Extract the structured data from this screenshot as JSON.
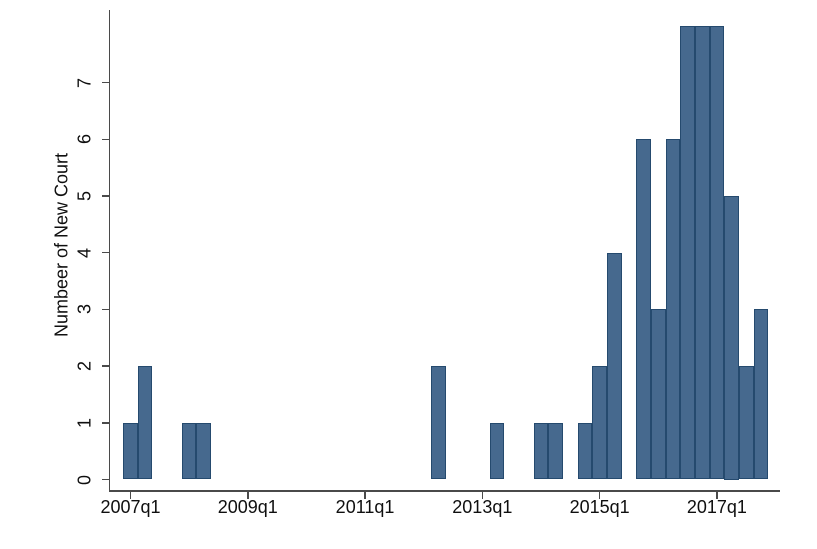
{
  "chart_data": {
    "type": "bar",
    "subtype": "histogram",
    "title": "",
    "xlabel": "",
    "ylabel": "Numbeer of New Court",
    "x": [
      "2007q1",
      "2007q2",
      "2007q3",
      "2007q4",
      "2008q1",
      "2008q2",
      "2008q3",
      "2008q4",
      "2009q1",
      "2009q2",
      "2009q3",
      "2009q4",
      "2010q1",
      "2010q2",
      "2010q3",
      "2010q4",
      "2011q1",
      "2011q2",
      "2011q3",
      "2011q4",
      "2012q1",
      "2012q2",
      "2012q3",
      "2012q4",
      "2013q1",
      "2013q2",
      "2013q3",
      "2013q4",
      "2014q1",
      "2014q2",
      "2014q3",
      "2014q4",
      "2015q1",
      "2015q2",
      "2015q3",
      "2015q4",
      "2016q1",
      "2016q2",
      "2016q3",
      "2016q4",
      "2017q1",
      "2017q2",
      "2017q3",
      "2017q4"
    ],
    "values": [
      1,
      2,
      0,
      0,
      1,
      1,
      0,
      0,
      0,
      0,
      0,
      0,
      0,
      0,
      0,
      0,
      0,
      0,
      0,
      0,
      0,
      2,
      0,
      0,
      0,
      1,
      0,
      0,
      1,
      1,
      0,
      1,
      2,
      4,
      0,
      6,
      3,
      6,
      8,
      8,
      8,
      5,
      2,
      3
    ],
    "x_ticks": [
      "2007q1",
      "2009q1",
      "2011q1",
      "2013q1",
      "2015q1",
      "2017q1"
    ],
    "y_ticks": [
      0,
      1,
      2,
      3,
      4,
      5,
      6,
      7
    ],
    "ylim": [
      0,
      8.3
    ],
    "bar_width_quarters": 1,
    "grid": false,
    "legend": "none",
    "colors": {
      "bar_fill": "#46698e",
      "bar_border": "#254a6e",
      "axis": "#4a4a4a",
      "text": "#0f0f0f",
      "background": "#ffffff"
    }
  }
}
